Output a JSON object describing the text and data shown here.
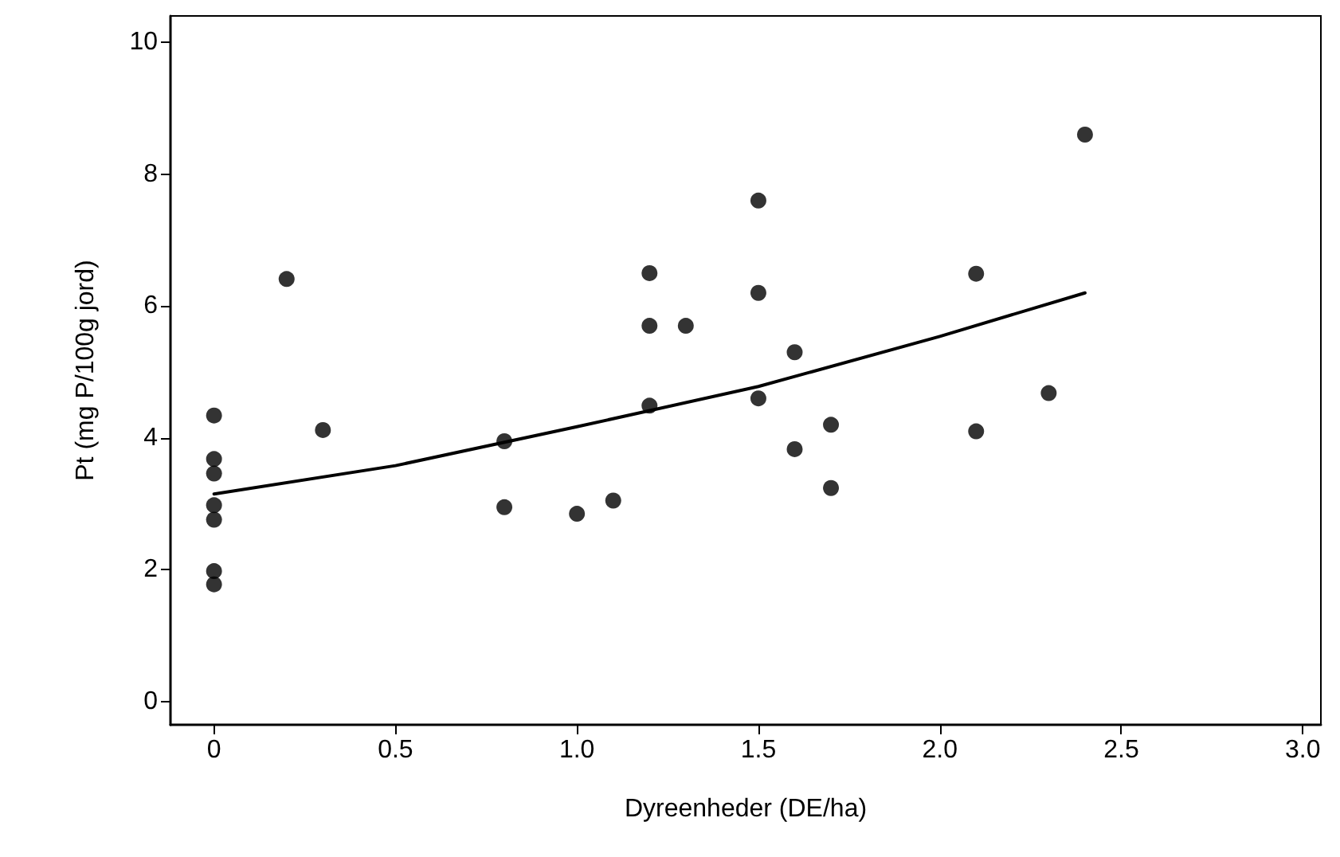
{
  "chart_data": {
    "type": "scatter",
    "xlabel": "Dyreenheder (DE/ha)",
    "ylabel": "Pt (mg P/100g jord)",
    "marker": "circle",
    "grid": false,
    "xlim": [
      -0.12,
      3.05
    ],
    "xticks": [
      0,
      {
        "value": 0.5,
        "label": "0.5"
      },
      {
        "value": 1,
        "label": "1.0"
      },
      {
        "value": 1.5,
        "label": "1.5"
      },
      {
        "value": 2,
        "label": "2.0"
      },
      {
        "value": 2.5,
        "label": "2.5"
      },
      {
        "value": 3,
        "label": "3.0"
      }
    ],
    "ylim": [
      -0.35,
      10.4
    ],
    "yticks": [
      0,
      2,
      4,
      6,
      8,
      10
    ],
    "series": [
      {
        "color": "#000000",
        "x": [
          0,
          0,
          0,
          0,
          0,
          0,
          0,
          0.2,
          0.3,
          0.8,
          0.8,
          1.0,
          1.1,
          1.2,
          1.2,
          1.2,
          1.3,
          1.5,
          1.5,
          1.5,
          1.6,
          1.6,
          1.7,
          1.7,
          2.1,
          2.1,
          2.3,
          2.4
        ],
        "values": [
          4.34,
          3.68,
          3.46,
          2.98,
          2.76,
          1.98,
          1.78,
          6.41,
          4.12,
          3.95,
          2.95,
          2.85,
          3.05,
          6.5,
          5.7,
          4.49,
          5.7,
          7.6,
          6.2,
          4.6,
          5.3,
          3.83,
          4.2,
          3.24,
          6.49,
          4.1,
          4.68,
          8.6
        ]
      },
      {
        "type": "line",
        "color": "#000000",
        "marker": "none",
        "line_style": "solid",
        "x": [
          0,
          0.5,
          1.0,
          1.5,
          2.0,
          2.4
        ],
        "values": [
          3.15,
          3.58,
          4.17,
          4.78,
          5.54,
          6.2
        ]
      }
    ]
  }
}
